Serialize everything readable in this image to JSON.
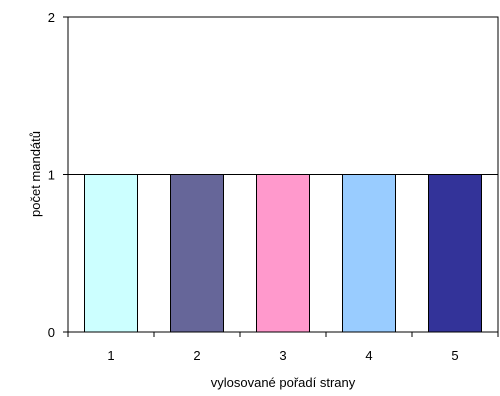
{
  "chart_data": {
    "type": "bar",
    "categories": [
      "1",
      "2",
      "3",
      "4",
      "5"
    ],
    "values": [
      1,
      1,
      1,
      1,
      1
    ],
    "bar_colors": [
      "#CCFFFF",
      "#666699",
      "#FF99CC",
      "#99CCFF",
      "#333399"
    ],
    "xlabel": "vylosované pořadí strany",
    "ylabel": "počet mandátů",
    "ylim": [
      0,
      2
    ],
    "yticks": [
      "0",
      "1",
      "2"
    ],
    "grid": "horizontal",
    "legend": "none"
  }
}
